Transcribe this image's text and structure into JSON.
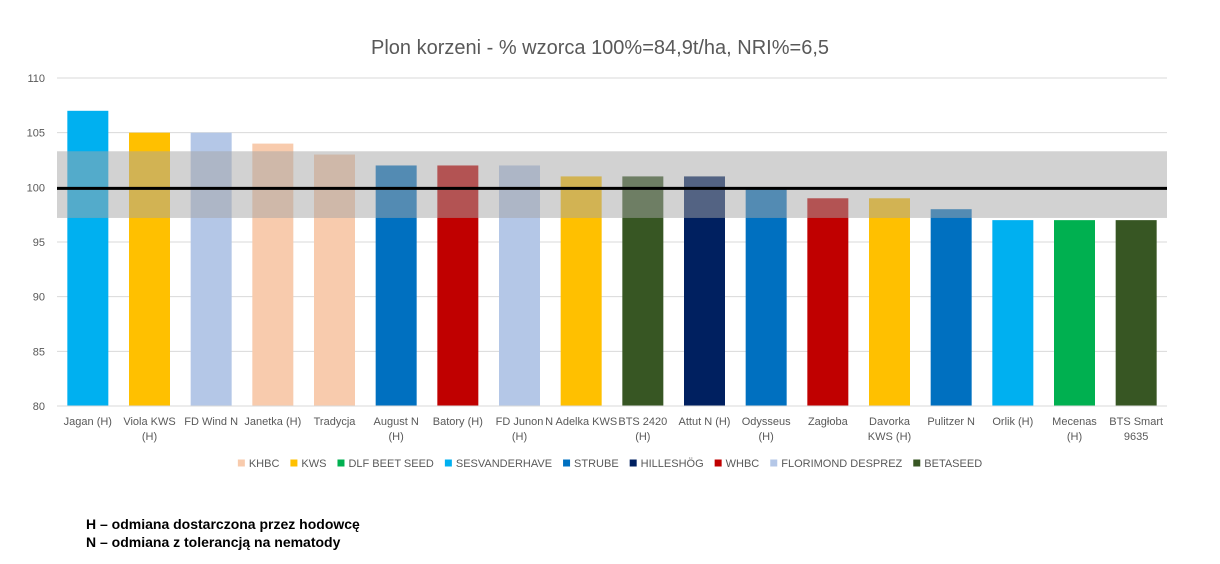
{
  "chart_data": {
    "type": "bar",
    "title": "Plon korzeni - % wzorca 100%=84,9t/ha, NRI%=6,5",
    "xlabel": "",
    "ylabel": "",
    "ylim": [
      80,
      110
    ],
    "yticks": [
      80,
      85,
      90,
      95,
      100,
      105,
      110
    ],
    "grid": true,
    "reference_line": 100,
    "nri_band": [
      97.2,
      103.3
    ],
    "categories": [
      [
        "Jagan (H)"
      ],
      [
        "Viola KWS",
        "(H)"
      ],
      [
        "FD Wind  N"
      ],
      [
        "Janetka (H)"
      ],
      [
        "Tradycja"
      ],
      [
        "August N",
        "(H)"
      ],
      [
        "Batory (H)"
      ],
      [
        "FD Junon",
        "(H)"
      ],
      [
        "N Adelka KWS"
      ],
      [
        "BTS 2420",
        "(H)"
      ],
      [
        "Attut  N (H)"
      ],
      [
        "Odysseus",
        "(H)"
      ],
      [
        "Zagłoba"
      ],
      [
        "Davorka",
        "KWS (H)"
      ],
      [
        "Pulitzer  N"
      ],
      [
        "Orlik (H)"
      ],
      [
        "Mecenas",
        "(H)"
      ],
      [
        "BTS Smart",
        "9635"
      ]
    ],
    "values": [
      107,
      105,
      105,
      104,
      103,
      102,
      102,
      102,
      101,
      101,
      101,
      100,
      99,
      99,
      98,
      97,
      97,
      97
    ],
    "bar_breeders": [
      "SESVANDERHAVE",
      "KWS",
      "FLORIMOND DESPREZ",
      "KHBC",
      "KHBC",
      "STRUBE",
      "WHBC",
      "FLORIMOND DESPREZ",
      "KWS",
      "BETASEED",
      "HILLESHÖG",
      "STRUBE",
      "WHBC",
      "KWS",
      "STRUBE",
      "SESVANDERHAVE",
      "DLF BEET SEED",
      "BETASEED"
    ],
    "legend": [
      {
        "name": "KHBC",
        "color": "#F8CBAD"
      },
      {
        "name": "KWS",
        "color": "#FFC000"
      },
      {
        "name": "DLF BEET SEED",
        "color": "#00B050"
      },
      {
        "name": "SESVANDERHAVE",
        "color": "#00B0F0"
      },
      {
        "name": "STRUBE",
        "color": "#0070C0"
      },
      {
        "name": "HILLESHÖG",
        "color": "#002060"
      },
      {
        "name": "WHBC",
        "color": "#C00000"
      },
      {
        "name": "FLORIMOND DESPREZ",
        "color": "#B4C7E7"
      },
      {
        "name": "BETASEED",
        "color": "#375623"
      }
    ],
    "legend_position": "bottom"
  },
  "notes": {
    "h": "H – odmiana dostarczona przez hodowcę",
    "n": "N – odmiana z tolerancją na nematody"
  }
}
